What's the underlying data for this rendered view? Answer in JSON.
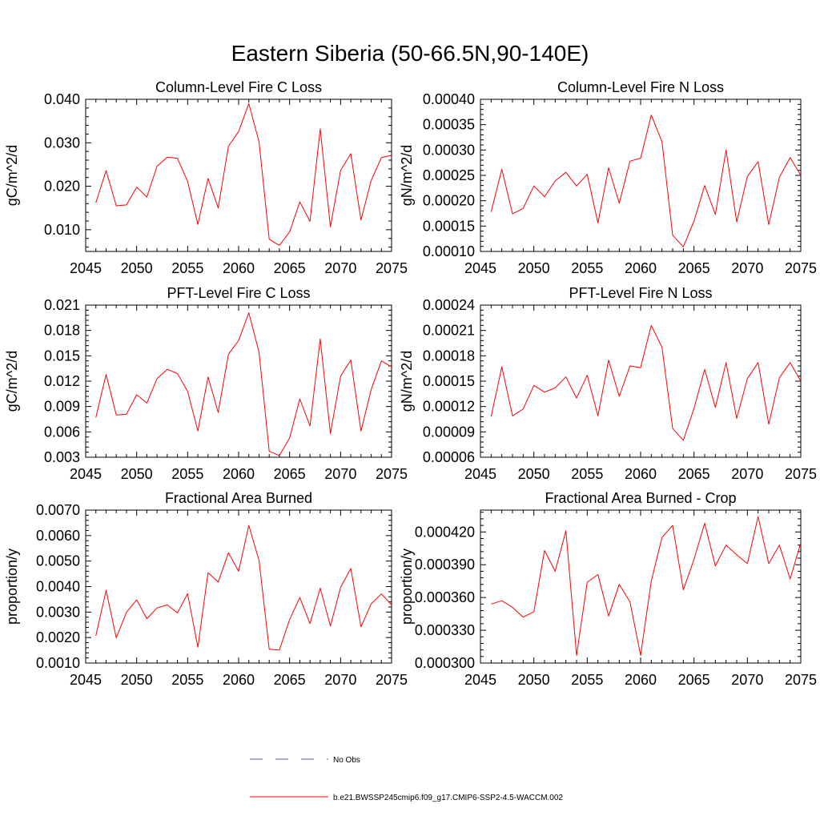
{
  "title": "Eastern Siberia (50-66.5N,90-140E)",
  "colors": {
    "series": "#ff0000",
    "no_obs": "#4a5bd0",
    "axis": "#000000"
  },
  "legend": {
    "no_obs_label": "No Obs",
    "model_label": "b.e21.BWSSP245cmip6.f09_g17.CMIP6-SSP2-4.5-WACCM.002"
  },
  "chart_data": [
    {
      "type": "line",
      "title": "Column-Level Fire C Loss",
      "ylabel": "gC/m^2/d",
      "xlim": [
        2045,
        2075
      ],
      "ylim": [
        0.005,
        0.04
      ],
      "xticks": [
        2045,
        2050,
        2055,
        2060,
        2065,
        2070,
        2075
      ],
      "yticks": [
        0.01,
        0.02,
        0.03,
        0.04
      ],
      "ytick_labels": [
        "0.010",
        "0.020",
        "0.030",
        "0.040"
      ],
      "series": [
        {
          "x": [
            2046,
            2047,
            2048,
            2049,
            2050,
            2051,
            2052,
            2053,
            2054,
            2055,
            2056,
            2057,
            2058,
            2059,
            2060,
            2061,
            2062,
            2063,
            2064,
            2065,
            2066,
            2067,
            2068,
            2069,
            2070,
            2071,
            2072,
            2073,
            2074,
            2075
          ],
          "values": [
            0.0162,
            0.0236,
            0.0155,
            0.0157,
            0.0198,
            0.0175,
            0.0246,
            0.0267,
            0.0264,
            0.0211,
            0.0112,
            0.0218,
            0.015,
            0.0292,
            0.0326,
            0.039,
            0.0302,
            0.0078,
            0.0064,
            0.0095,
            0.0164,
            0.0119,
            0.0332,
            0.0107,
            0.0236,
            0.0275,
            0.0122,
            0.0213,
            0.0266,
            0.0271
          ]
        }
      ]
    },
    {
      "type": "line",
      "title": "Column-Level Fire N Loss",
      "ylabel": "gN/m^2/d",
      "xlim": [
        2045,
        2075
      ],
      "ylim": [
        0.0001,
        0.0004
      ],
      "xticks": [
        2045,
        2050,
        2055,
        2060,
        2065,
        2070,
        2075
      ],
      "yticks": [
        0.0001,
        0.00015,
        0.0002,
        0.00025,
        0.0003,
        0.00035,
        0.0004
      ],
      "ytick_labels": [
        "0.00010",
        "0.00015",
        "0.00020",
        "0.00025",
        "0.00030",
        "0.00035",
        "0.00040"
      ],
      "series": [
        {
          "x": [
            2046,
            2047,
            2048,
            2049,
            2050,
            2051,
            2052,
            2053,
            2054,
            2055,
            2056,
            2057,
            2058,
            2059,
            2060,
            2061,
            2062,
            2063,
            2064,
            2065,
            2066,
            2067,
            2068,
            2069,
            2070,
            2071,
            2072,
            2073,
            2074,
            2075
          ],
          "values": [
            0.000178,
            0.000262,
            0.000174,
            0.000185,
            0.000229,
            0.000208,
            0.000239,
            0.000256,
            0.000229,
            0.000252,
            0.000156,
            0.000265,
            0.000195,
            0.000278,
            0.000284,
            0.000369,
            0.000316,
            0.000132,
            0.000109,
            0.00016,
            0.00023,
            0.000173,
            0.0003,
            0.000158,
            0.000248,
            0.000277,
            0.000153,
            0.000246,
            0.000285,
            0.00025
          ]
        }
      ]
    },
    {
      "type": "line",
      "title": "PFT-Level Fire C Loss",
      "ylabel": "gC/m^2/d",
      "xlim": [
        2045,
        2075
      ],
      "ylim": [
        0.003,
        0.021
      ],
      "xticks": [
        2045,
        2050,
        2055,
        2060,
        2065,
        2070,
        2075
      ],
      "yticks": [
        0.003,
        0.006,
        0.009,
        0.012,
        0.015,
        0.018,
        0.021
      ],
      "ytick_labels": [
        "0.003",
        "0.006",
        "0.009",
        "0.012",
        "0.015",
        "0.018",
        "0.021"
      ],
      "series": [
        {
          "x": [
            2046,
            2047,
            2048,
            2049,
            2050,
            2051,
            2052,
            2053,
            2054,
            2055,
            2056,
            2057,
            2058,
            2059,
            2060,
            2061,
            2062,
            2063,
            2064,
            2065,
            2066,
            2067,
            2068,
            2069,
            2070,
            2071,
            2072,
            2073,
            2074,
            2075
          ],
          "values": [
            0.0077,
            0.0128,
            0.008,
            0.0081,
            0.0104,
            0.0094,
            0.0123,
            0.0134,
            0.0129,
            0.0108,
            0.0061,
            0.0125,
            0.0083,
            0.0152,
            0.0168,
            0.0201,
            0.0154,
            0.0037,
            0.0032,
            0.0053,
            0.0099,
            0.0067,
            0.017,
            0.0058,
            0.0126,
            0.0145,
            0.0061,
            0.011,
            0.0144,
            0.0137
          ]
        }
      ]
    },
    {
      "type": "line",
      "title": "PFT-Level Fire N Loss",
      "ylabel": "gN/m^2/d",
      "xlim": [
        2045,
        2075
      ],
      "ylim": [
        6e-05,
        0.00024
      ],
      "xticks": [
        2045,
        2050,
        2055,
        2060,
        2065,
        2070,
        2075
      ],
      "yticks": [
        6e-05,
        9e-05,
        0.00012,
        0.00015,
        0.00018,
        0.00021,
        0.00024
      ],
      "ytick_labels": [
        "0.00006",
        "0.00009",
        "0.00012",
        "0.00015",
        "0.00018",
        "0.00021",
        "0.00024"
      ],
      "series": [
        {
          "x": [
            2046,
            2047,
            2048,
            2049,
            2050,
            2051,
            2052,
            2053,
            2054,
            2055,
            2056,
            2057,
            2058,
            2059,
            2060,
            2061,
            2062,
            2063,
            2064,
            2065,
            2066,
            2067,
            2068,
            2069,
            2070,
            2071,
            2072,
            2073,
            2074,
            2075
          ],
          "values": [
            0.000108,
            0.000167,
            0.000109,
            0.000117,
            0.000145,
            0.000137,
            0.000142,
            0.000155,
            0.00013,
            0.000157,
            0.000109,
            0.000175,
            0.000132,
            0.000168,
            0.000166,
            0.000216,
            0.00019,
            9.4e-05,
            8e-05,
            0.000118,
            0.000164,
            0.000119,
            0.000172,
            0.000106,
            0.000153,
            0.000172,
            9.9e-05,
            0.000154,
            0.000172,
            0.00015
          ]
        }
      ]
    },
    {
      "type": "line",
      "title": "Fractional Area Burned",
      "ylabel": "proportion/y",
      "xlim": [
        2045,
        2075
      ],
      "ylim": [
        0.001,
        0.007
      ],
      "xticks": [
        2045,
        2050,
        2055,
        2060,
        2065,
        2070,
        2075
      ],
      "yticks": [
        0.001,
        0.002,
        0.003,
        0.004,
        0.005,
        0.006,
        0.007
      ],
      "ytick_labels": [
        "0.0010",
        "0.0020",
        "0.0030",
        "0.0040",
        "0.0050",
        "0.0060",
        "0.0070"
      ],
      "series": [
        {
          "x": [
            2046,
            2047,
            2048,
            2049,
            2050,
            2051,
            2052,
            2053,
            2054,
            2055,
            2056,
            2057,
            2058,
            2059,
            2060,
            2061,
            2062,
            2063,
            2064,
            2065,
            2066,
            2067,
            2068,
            2069,
            2070,
            2071,
            2072,
            2073,
            2074,
            2075
          ],
          "values": [
            0.00207,
            0.00385,
            0.00199,
            0.00299,
            0.00348,
            0.00274,
            0.00316,
            0.00328,
            0.00297,
            0.00372,
            0.00162,
            0.00454,
            0.00418,
            0.00533,
            0.0046,
            0.0064,
            0.00502,
            0.00154,
            0.00151,
            0.00271,
            0.00357,
            0.00255,
            0.00394,
            0.00245,
            0.00397,
            0.00471,
            0.00242,
            0.00332,
            0.00371,
            0.00328
          ]
        }
      ]
    },
    {
      "type": "line",
      "title": "Fractional Area Burned - Crop",
      "ylabel": "proportion/y",
      "xlim": [
        2045,
        2075
      ],
      "ylim": [
        0.0003,
        0.00044
      ],
      "xticks": [
        2045,
        2050,
        2055,
        2060,
        2065,
        2070,
        2075
      ],
      "yticks": [
        0.0003,
        0.00033,
        0.00036,
        0.00039,
        0.00042
      ],
      "ytick_labels": [
        "0.000300",
        "0.000330",
        "0.000360",
        "0.000390",
        "0.000420"
      ],
      "series": [
        {
          "x": [
            2046,
            2047,
            2048,
            2049,
            2050,
            2051,
            2052,
            2053,
            2054,
            2055,
            2056,
            2057,
            2058,
            2059,
            2060,
            2061,
            2062,
            2063,
            2064,
            2065,
            2066,
            2067,
            2068,
            2069,
            2070,
            2071,
            2072,
            2073,
            2074,
            2075
          ],
          "values": [
            0.000354,
            0.000357,
            0.000351,
            0.000342,
            0.000347,
            0.000403,
            0.000384,
            0.000421,
            0.000307,
            0.000374,
            0.000381,
            0.000343,
            0.000372,
            0.000356,
            0.000307,
            0.000375,
            0.000415,
            0.000426,
            0.000367,
            0.000395,
            0.000428,
            0.000389,
            0.000408,
            0.000399,
            0.000391,
            0.000434,
            0.000391,
            0.000408,
            0.000377,
            0.00041
          ]
        }
      ]
    }
  ]
}
